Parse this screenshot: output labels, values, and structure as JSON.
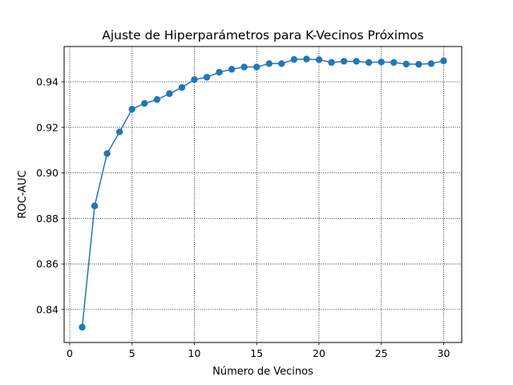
{
  "chart_data": {
    "type": "line",
    "title": "Ajuste de Hiperparámetros para K-Vecinos Próximos",
    "xlabel": "Número de Vecinos",
    "ylabel": "ROC-AUC",
    "xlim": [
      -0.45,
      31.45
    ],
    "ylim": [
      0.8255,
      0.9555
    ],
    "x_ticks": [
      0,
      5,
      10,
      15,
      20,
      25,
      30
    ],
    "x_tick_labels": [
      "0",
      "5",
      "10",
      "15",
      "20",
      "25",
      "30"
    ],
    "y_ticks": [
      0.84,
      0.86,
      0.88,
      0.9,
      0.92,
      0.94
    ],
    "y_tick_labels": [
      "0.84",
      "0.86",
      "0.88",
      "0.90",
      "0.92",
      "0.94"
    ],
    "grid": true,
    "grid_style": "dotted",
    "marker": "circle",
    "color": "#1f77b4",
    "series": [
      {
        "x": [
          1,
          2,
          3,
          4,
          5,
          6,
          7,
          8,
          9,
          10,
          11,
          12,
          13,
          14,
          15,
          16,
          17,
          18,
          19,
          20,
          21,
          22,
          23,
          24,
          25,
          26,
          27,
          28,
          29,
          30
        ],
        "values": [
          0.8322,
          0.8855,
          0.9085,
          0.918,
          0.928,
          0.9305,
          0.9322,
          0.9348,
          0.9375,
          0.941,
          0.942,
          0.9442,
          0.9455,
          0.9465,
          0.9465,
          0.948,
          0.948,
          0.9498,
          0.95,
          0.9497,
          0.9485,
          0.949,
          0.949,
          0.9485,
          0.9487,
          0.9485,
          0.9478,
          0.9477,
          0.948,
          0.9492
        ]
      }
    ]
  }
}
